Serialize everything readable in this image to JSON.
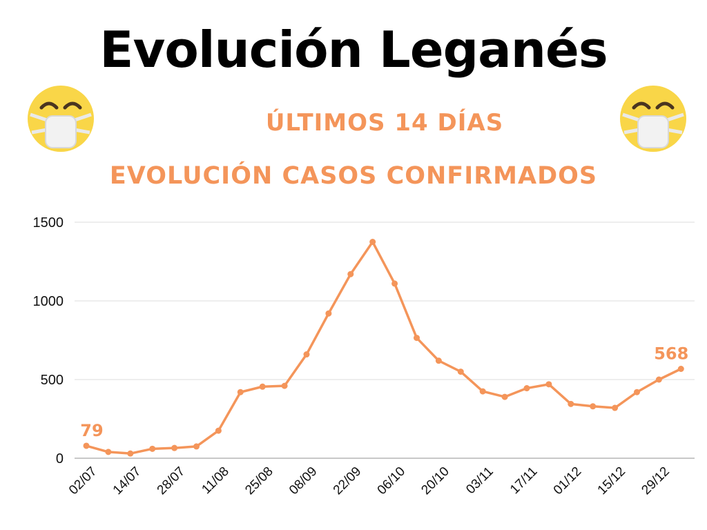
{
  "header": {
    "title": "Evolución Leganés",
    "subtitle1": "ÚLTIMOS 14 DÍAS",
    "subtitle2": "EVOLUCIÓN CASOS CONFIRMADOS"
  },
  "icons": {
    "left": "face-with-medical-mask-icon",
    "right": "face-with-medical-mask-icon"
  },
  "colors": {
    "line": "#f4955a",
    "title": "#000000",
    "subtitle": "#f4955a",
    "grid": "#dcdcdc"
  },
  "chart_data": {
    "type": "line",
    "title": "EVOLUCIÓN CASOS CONFIRMADOS",
    "xlabel": "",
    "ylabel": "",
    "ylim": [
      0,
      1500
    ],
    "yticks": [
      0,
      500,
      1000,
      1500
    ],
    "grid": true,
    "x_tick_labels": [
      "02/07",
      "14/07",
      "28/07",
      "11/08",
      "25/08",
      "08/09",
      "22/09",
      "06/10",
      "20/10",
      "03/11",
      "17/11",
      "01/12",
      "15/12",
      "29/12"
    ],
    "values": [
      79,
      40,
      30,
      60,
      65,
      75,
      175,
      420,
      455,
      460,
      660,
      920,
      1170,
      1375,
      1110,
      765,
      620,
      550,
      425,
      390,
      445,
      470,
      345,
      330,
      320,
      420,
      500,
      568
    ],
    "data_labels": [
      {
        "index": 0,
        "text": "79"
      },
      {
        "index": 27,
        "text": "568"
      }
    ]
  }
}
